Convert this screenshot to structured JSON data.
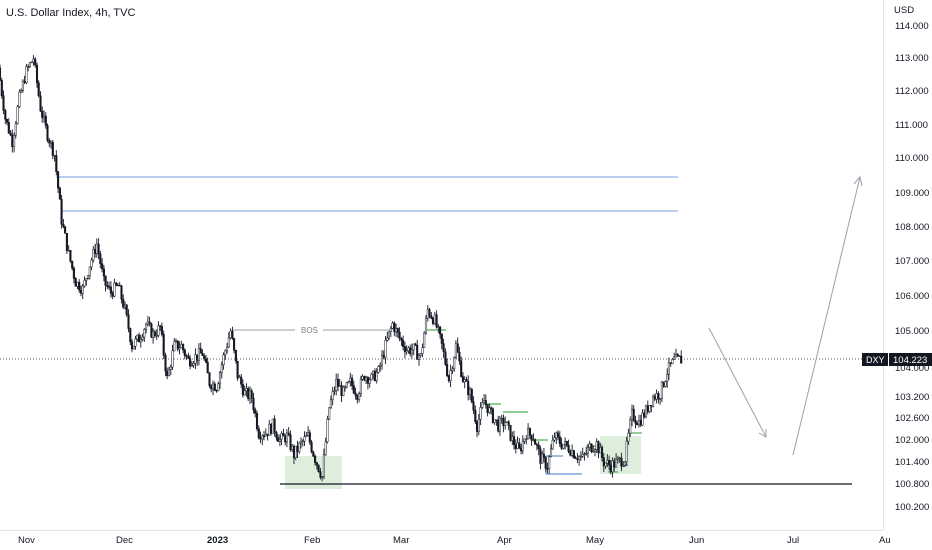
{
  "header": {
    "title": "U.S. Dollar Index, 4h, TVC"
  },
  "price_axis": {
    "unit": "USD",
    "ticks": [
      "114.000",
      "113.000",
      "112.000",
      "111.000",
      "110.000",
      "109.000",
      "108.000",
      "107.000",
      "106.000",
      "105.000",
      "104.000",
      "103.200",
      "102.600",
      "102.000",
      "101.400",
      "100.800",
      "100.200"
    ]
  },
  "time_axis": {
    "labels": [
      {
        "text": "Nov",
        "bold": false
      },
      {
        "text": "Dec",
        "bold": false
      },
      {
        "text": "2023",
        "bold": true
      },
      {
        "text": "Feb",
        "bold": false
      },
      {
        "text": "Mar",
        "bold": false
      },
      {
        "text": "Apr",
        "bold": false
      },
      {
        "text": "May",
        "bold": false
      },
      {
        "text": "Jun",
        "bold": false
      },
      {
        "text": "Jul",
        "bold": false
      },
      {
        "text": "Au",
        "bold": false
      }
    ]
  },
  "price_tag": {
    "symbol": "DXY",
    "value": "104.223"
  },
  "annotations": {
    "bos_label": "BOS"
  },
  "colors": {
    "candle": "#131722",
    "level_line": "#7b9be0",
    "zone_fill": "#d9ecd8",
    "green_step": "#4caf50",
    "blue_step": "#6b8fd6",
    "arrow": "#9aa0ab",
    "support": "#131722"
  },
  "chart_data": {
    "type": "line",
    "title": "U.S. Dollar Index, 4h, TVC",
    "ylabel": "USD",
    "ylim": [
      99.9,
      114.6
    ],
    "x_labels": [
      "Nov",
      "Dec",
      "2023",
      "Feb",
      "Mar",
      "Apr",
      "May",
      "Jun",
      "Jul",
      "Au"
    ],
    "series": [
      {
        "name": "DXY",
        "points": [
          [
            "Oct 24",
            112.7
          ],
          [
            "Oct 26",
            111.2
          ],
          [
            "Oct 28",
            110.5
          ],
          [
            "Oct 31",
            111.8
          ],
          [
            "Nov 2",
            112.6
          ],
          [
            "Nov 3",
            113.0
          ],
          [
            "Nov 4",
            111.5
          ],
          [
            "Nov 7",
            110.7
          ],
          [
            "Nov 9",
            110.1
          ],
          [
            "Nov 10",
            108.2
          ],
          [
            "Nov 11",
            107.2
          ],
          [
            "Nov 14",
            106.4
          ],
          [
            "Nov 16",
            106.2
          ],
          [
            "Nov 18",
            106.9
          ],
          [
            "Nov 21",
            107.5
          ],
          [
            "Nov 23",
            106.4
          ],
          [
            "Nov 25",
            106.1
          ],
          [
            "Nov 28",
            106.3
          ],
          [
            "Nov 30",
            105.6
          ],
          [
            "Dec 2",
            104.6
          ],
          [
            "Dec 5",
            104.8
          ],
          [
            "Dec 7",
            105.2
          ],
          [
            "Dec 9",
            104.9
          ],
          [
            "Dec 12",
            105.1
          ],
          [
            "Dec 14",
            103.7
          ],
          [
            "Dec 16",
            104.6
          ],
          [
            "Dec 19",
            104.6
          ],
          [
            "Dec 21",
            104.2
          ],
          [
            "Dec 23",
            104.3
          ],
          [
            "Dec 27",
            104.4
          ],
          [
            "Dec 29",
            103.6
          ],
          [
            "Jan 2",
            103.5
          ],
          [
            "Jan 3",
            104.3
          ],
          [
            "Jan 4",
            105.0
          ],
          [
            "Jan 6",
            103.8
          ],
          [
            "Jan 9",
            103.3
          ],
          [
            "Jan 11",
            103.2
          ],
          [
            "Jan 13",
            102.2
          ],
          [
            "Jan 16",
            102.2
          ],
          [
            "Jan 18",
            102.4
          ],
          [
            "Jan 20",
            102.0
          ],
          [
            "Jan 23",
            102.1
          ],
          [
            "Jan 25",
            101.6
          ],
          [
            "Jan 27",
            101.9
          ],
          [
            "Jan 30",
            102.1
          ],
          [
            "Feb 1",
            101.5
          ],
          [
            "Feb 2",
            101.0
          ],
          [
            "Feb 3",
            102.9
          ],
          [
            "Feb 6",
            103.6
          ],
          [
            "Feb 8",
            103.3
          ],
          [
            "Feb 10",
            103.6
          ],
          [
            "Feb 13",
            103.3
          ],
          [
            "Feb 15",
            103.8
          ],
          [
            "Feb 17",
            103.7
          ],
          [
            "Feb 20",
            103.9
          ],
          [
            "Feb 22",
            104.6
          ],
          [
            "Feb 24",
            105.2
          ],
          [
            "Feb 27",
            104.8
          ],
          [
            "Mar 1",
            104.5
          ],
          [
            "Mar 3",
            104.5
          ],
          [
            "Mar 6",
            104.3
          ],
          [
            "Mar 8",
            105.6
          ],
          [
            "Mar 9",
            105.3
          ],
          [
            "Mar 10",
            104.6
          ],
          [
            "Mar 13",
            103.7
          ],
          [
            "Mar 15",
            104.6
          ],
          [
            "Mar 17",
            103.7
          ],
          [
            "Mar 20",
            103.3
          ],
          [
            "Mar 22",
            102.4
          ],
          [
            "Mar 24",
            103.1
          ],
          [
            "Mar 27",
            102.7
          ],
          [
            "Mar 29",
            102.4
          ],
          [
            "Mar 31",
            102.5
          ],
          [
            "Apr 3",
            102.0
          ],
          [
            "Apr 5",
            101.7
          ],
          [
            "Apr 7",
            102.2
          ],
          [
            "Apr 10",
            102.1
          ],
          [
            "Apr 12",
            101.5
          ],
          [
            "Apr 14",
            101.3
          ],
          [
            "Apr 17",
            102.1
          ],
          [
            "Apr 19",
            101.9
          ],
          [
            "Apr 21",
            101.8
          ],
          [
            "Apr 24",
            101.6
          ],
          [
            "Apr 26",
            101.5
          ],
          [
            "Apr 28",
            101.8
          ],
          [
            "May 1",
            101.9
          ],
          [
            "May 3",
            101.4
          ],
          [
            "May 5",
            101.3
          ],
          [
            "May 8",
            101.4
          ],
          [
            "May 10",
            101.5
          ],
          [
            "May 12",
            102.7
          ],
          [
            "May 15",
            102.5
          ],
          [
            "May 17",
            102.8
          ],
          [
            "May 19",
            103.2
          ],
          [
            "May 22",
            103.3
          ],
          [
            "May 24",
            103.9
          ],
          [
            "May 26",
            104.2
          ],
          [
            "May 29",
            104.223
          ]
        ]
      }
    ],
    "levels": [
      {
        "label": "resistance",
        "value": 109.5
      },
      {
        "label": "resistance",
        "value": 108.5
      },
      {
        "label": "BOS",
        "value": 105.1
      },
      {
        "label": "support",
        "value": 100.8
      },
      {
        "label": "last price",
        "value": 104.223
      }
    ],
    "forecast_path": [
      [
        "May 31",
        105.1
      ],
      [
        "Jun 22",
        102.1
      ],
      [
        "Jul 1",
        101.6
      ],
      [
        "Jul 20",
        109.5
      ]
    ]
  }
}
